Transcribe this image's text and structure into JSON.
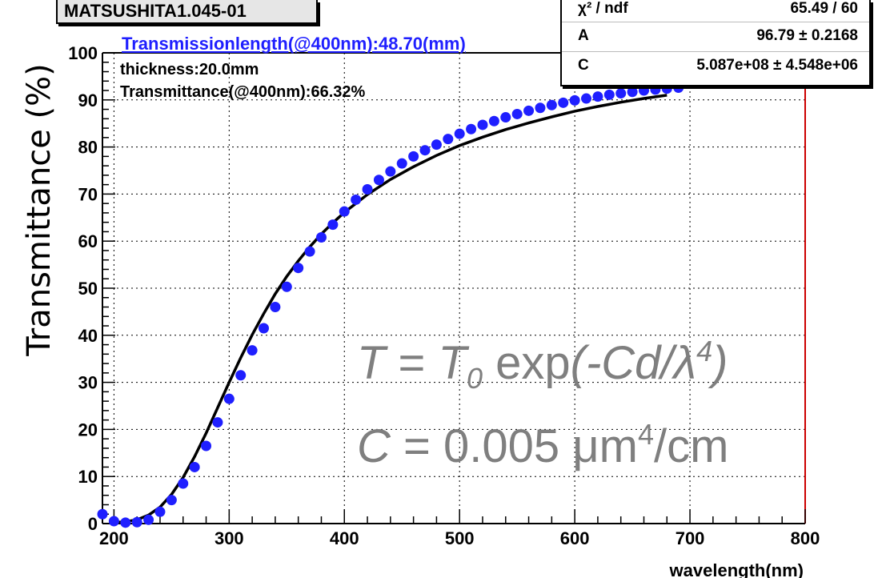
{
  "header": {
    "title": "MATSUSHITA1.045-01"
  },
  "stats": {
    "rows": [
      {
        "name": "χ² / ndf",
        "value": "65.49 / 60"
      },
      {
        "name": "A",
        "value": "96.79 ± 0.2168"
      },
      {
        "name": "C",
        "value": "5.087e+08 ± 4.548e+06"
      }
    ]
  },
  "annotations": {
    "transmission_length": "Transmissionlength(@400nm):48.70(mm)",
    "thickness": "thickness:20.0mm",
    "transmittance": "Transmittance(@400nm):66.32%",
    "formula1": {
      "T": "T",
      "eq": " = ",
      "T0": "T",
      "sub0": "0",
      "exp": " exp",
      "arg": "(-Cd/λ",
      "pow": "4",
      "close": ")"
    },
    "formula2": {
      "C": "C",
      "rest": " = 0.005 μm",
      "pow": "4",
      "unit": "/cm"
    }
  },
  "colors": {
    "points": "#1f1fff",
    "fit": "#000000",
    "frame_right": "#cc0000",
    "formula": "#7f7f7f"
  },
  "chart_data": {
    "type": "scatter",
    "xlabel": "wavelength(nm)",
    "ylabel": "Transmittance (%)",
    "xlim": [
      190,
      800
    ],
    "ylim": [
      0,
      100
    ],
    "grid": true,
    "xticks": [
      200,
      300,
      400,
      500,
      600,
      700,
      800
    ],
    "yticks": [
      0,
      10,
      20,
      30,
      40,
      50,
      60,
      70,
      80,
      90,
      100
    ],
    "series": [
      {
        "kind": "points",
        "x": [
          190,
          200,
          210,
          220,
          230,
          240,
          250,
          260,
          270,
          280,
          290,
          300,
          310,
          320,
          330,
          340,
          350,
          360,
          370,
          380,
          390,
          400,
          410,
          420,
          430,
          440,
          450,
          460,
          470,
          480,
          490,
          500,
          510,
          520,
          530,
          540,
          550,
          560,
          570,
          580,
          590,
          600,
          610,
          620,
          630,
          640,
          650,
          660,
          670,
          680,
          690
        ],
        "y": [
          2.0,
          0.5,
          0.2,
          0.3,
          0.8,
          2.5,
          5.0,
          8.5,
          12.0,
          16.5,
          21.5,
          26.5,
          31.5,
          36.8,
          41.5,
          46.0,
          50.3,
          54.3,
          57.8,
          60.8,
          63.5,
          66.3,
          68.8,
          71.0,
          73.0,
          74.8,
          76.5,
          78.0,
          79.3,
          80.5,
          81.7,
          82.8,
          83.8,
          84.7,
          85.5,
          86.3,
          87.0,
          87.7,
          88.3,
          88.9,
          89.4,
          89.9,
          90.3,
          90.7,
          91.1,
          91.4,
          91.7,
          92.0,
          92.2,
          92.4,
          92.6
        ]
      },
      {
        "kind": "fit",
        "x": [
          200,
          210,
          220,
          230,
          240,
          250,
          260,
          270,
          280,
          290,
          300,
          310,
          320,
          330,
          340,
          350,
          360,
          370,
          380,
          390,
          400,
          420,
          440,
          460,
          480,
          500,
          520,
          540,
          560,
          580,
          600,
          620,
          640,
          660,
          680
        ],
        "y": [
          0.2,
          0.4,
          0.8,
          1.8,
          3.5,
          6.2,
          9.8,
          14.2,
          19.2,
          24.6,
          30.0,
          35.2,
          40.1,
          44.6,
          48.8,
          52.5,
          55.8,
          58.8,
          61.5,
          63.9,
          66.1,
          69.9,
          73.1,
          75.8,
          78.2,
          80.3,
          82.1,
          83.7,
          85.1,
          86.4,
          87.6,
          88.6,
          89.5,
          90.3,
          91.0
        ]
      }
    ]
  }
}
